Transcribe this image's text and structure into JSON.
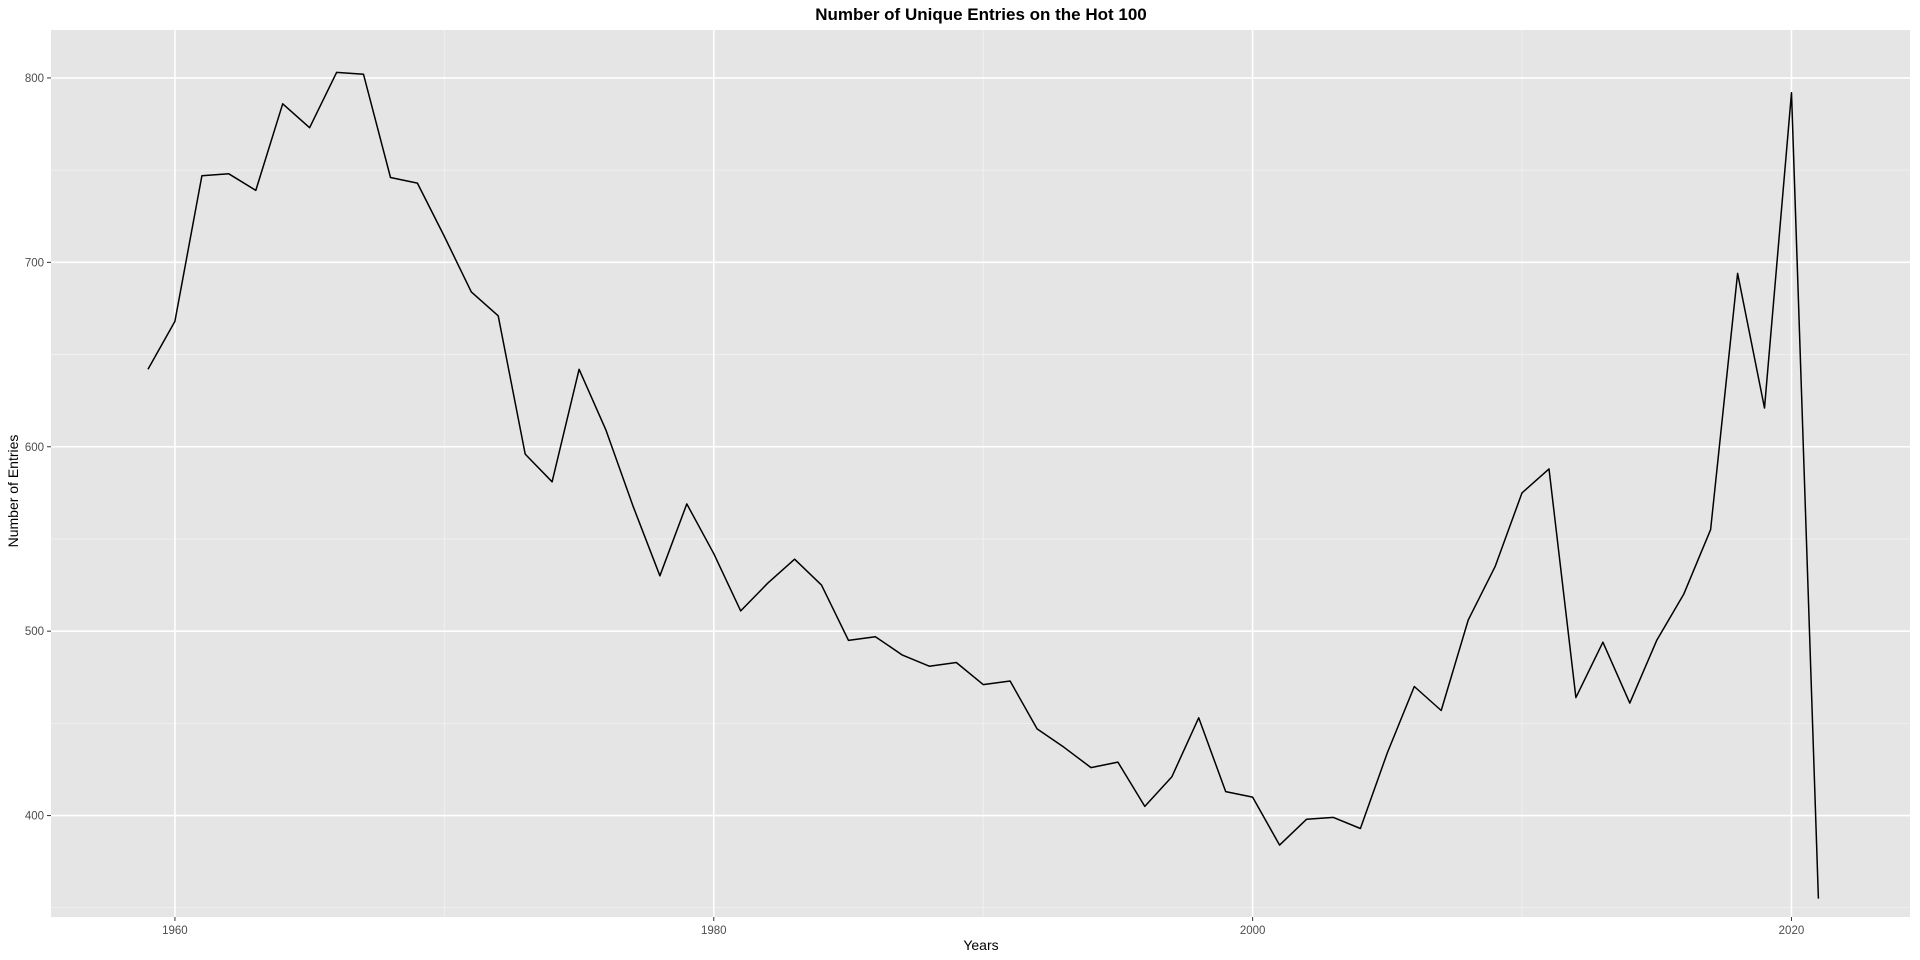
{
  "chart_data": {
    "type": "line",
    "title": "Number of Unique Entries on the Hot 100",
    "xlabel": "Years",
    "ylabel": "Number of Entries",
    "xlim": [
      1955.4,
      2024.4
    ],
    "ylim": [
      345,
      826
    ],
    "x_ticks": [
      1960,
      1980,
      2000,
      2020
    ],
    "x_tick_labels": [
      "1960",
      "1980",
      "2000",
      "2020"
    ],
    "y_ticks": [
      400,
      500,
      600,
      700,
      800
    ],
    "y_tick_labels": [
      "400",
      "500",
      "600",
      "700",
      "800"
    ],
    "grid": true,
    "legend": "none",
    "series": [
      {
        "color": "#000000",
        "x": [
          1959,
          1960,
          1961,
          1962,
          1963,
          1964,
          1965,
          1966,
          1967,
          1968,
          1969,
          1970,
          1971,
          1972,
          1973,
          1974,
          1975,
          1976,
          1977,
          1978,
          1979,
          1980,
          1981,
          1982,
          1983,
          1984,
          1985,
          1986,
          1987,
          1988,
          1989,
          1990,
          1991,
          1992,
          1993,
          1994,
          1995,
          1996,
          1997,
          1998,
          1999,
          2000,
          2001,
          2002,
          2003,
          2004,
          2005,
          2006,
          2007,
          2008,
          2009,
          2010,
          2011,
          2012,
          2013,
          2014,
          2015,
          2016,
          2017,
          2018,
          2019,
          2020,
          2021
        ],
        "values": [
          642,
          668,
          747,
          748,
          739,
          786,
          773,
          803,
          802,
          746,
          743,
          714,
          684,
          671,
          596,
          581,
          642,
          609,
          568,
          530,
          569,
          542,
          511,
          526,
          539,
          525,
          495,
          497,
          487,
          481,
          483,
          471,
          473,
          447,
          437,
          426,
          429,
          405,
          421,
          453,
          413,
          410,
          384,
          398,
          399,
          393,
          434,
          470,
          457,
          506,
          535,
          575,
          588,
          464,
          494,
          461,
          495,
          520,
          555,
          694,
          621,
          792,
          355
        ]
      }
    ]
  }
}
